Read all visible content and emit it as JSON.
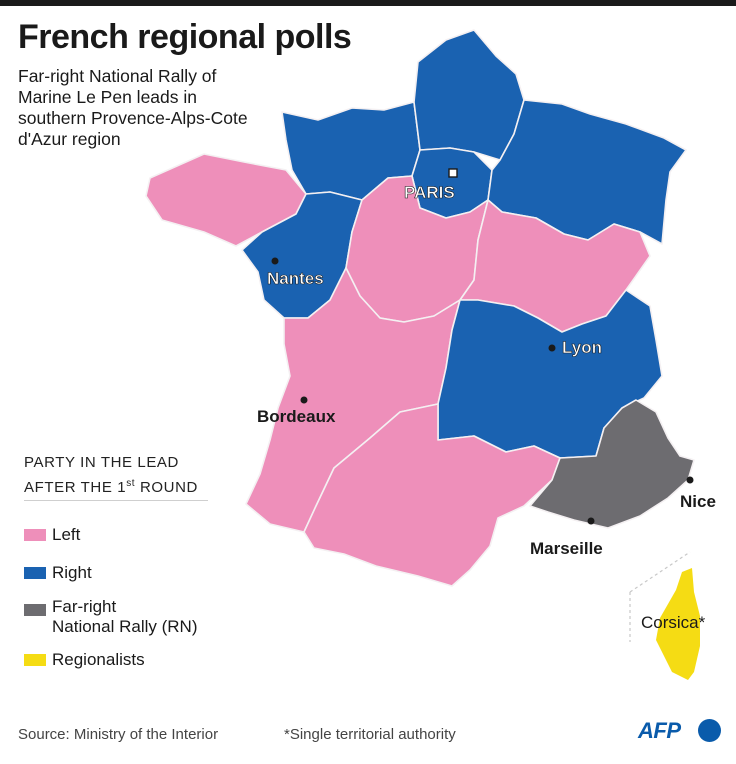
{
  "title": "French regional polls",
  "subtitle": "Far-right National Rally of Marine Le Pen leads in southern Provence-Alps-Cote d'Azur region",
  "colors": {
    "left": "#ee8fba",
    "right": "#1a62b1",
    "far_right": "#6d6c70",
    "regionalists": "#f5dc14",
    "border": "#f4f0f2"
  },
  "legend": {
    "title_line1": "PARTY IN THE LEAD",
    "title_line2_pre": "AFTER THE 1",
    "title_line2_sup": "st",
    "title_line2_post": " ROUND",
    "items": [
      {
        "label": "Left",
        "party": "left"
      },
      {
        "label": "Right",
        "party": "right"
      },
      {
        "label_line1": "Far-right",
        "label_line2": "National Rally (RN)",
        "party": "far_right"
      },
      {
        "label": "Regionalists",
        "party": "regionalists"
      }
    ]
  },
  "map_regions": [
    {
      "name": "Hauts-de-France",
      "party": "right"
    },
    {
      "name": "Normandy",
      "party": "right"
    },
    {
      "name": "Ile-de-France",
      "party": "right"
    },
    {
      "name": "Grand Est",
      "party": "right"
    },
    {
      "name": "Brittany",
      "party": "left"
    },
    {
      "name": "Pays de la Loire",
      "party": "right"
    },
    {
      "name": "Centre-Val de Loire",
      "party": "left"
    },
    {
      "name": "Bourgogne-Franche-Comte",
      "party": "left"
    },
    {
      "name": "Nouvelle-Aquitaine",
      "party": "left"
    },
    {
      "name": "Auvergne-Rhone-Alpes",
      "party": "right"
    },
    {
      "name": "Occitanie",
      "party": "left"
    },
    {
      "name": "Provence-Alps-Cote d'Azur",
      "party": "far_right"
    },
    {
      "name": "Corsica",
      "party": "regionalists"
    }
  ],
  "cities": {
    "paris": "PARIS",
    "nantes": "Nantes",
    "lyon": "Lyon",
    "bordeaux": "Bordeaux",
    "marseille": "Marseille",
    "nice": "Nice",
    "corsica": "Corsica*"
  },
  "footer": {
    "source": "Source: Ministry of the Interior",
    "note": "*Single territorial authority",
    "logo": "AFP"
  }
}
